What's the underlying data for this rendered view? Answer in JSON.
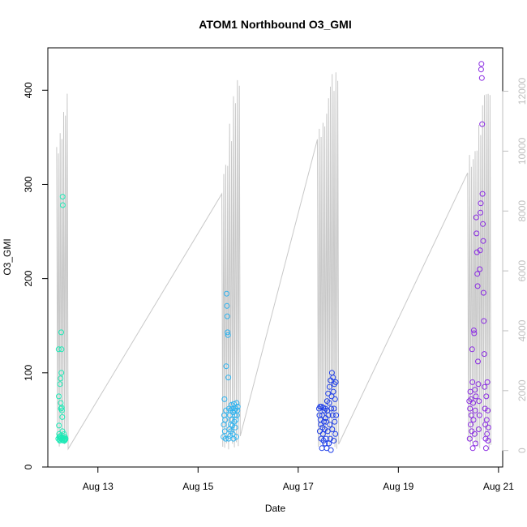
{
  "chart_data": {
    "type": "scatter",
    "title": "ATOM1 Northbound O3_GMI",
    "xlabel": "Date",
    "ylabel": "O3_GMI",
    "xlim": [
      "2016-08-12T00:00",
      "2016-08-21T02:00"
    ],
    "ylim": [
      0,
      445
    ],
    "y_ticks": [
      "0",
      "100",
      "200",
      "300",
      "400"
    ],
    "x_ticks": [
      {
        "date": "2016-08-13",
        "label": "Aug 13"
      },
      {
        "date": "2016-08-15",
        "label": "Aug 15"
      },
      {
        "date": "2016-08-17",
        "label": "Aug 17"
      },
      {
        "date": "2016-08-19",
        "label": "Aug 19"
      },
      {
        "date": "2016-08-21",
        "label": "Aug 21"
      }
    ],
    "right_axis": {
      "ticks": [
        "0",
        "2000",
        "4000",
        "6000",
        "8000",
        "10000",
        "12000"
      ],
      "ylim": [
        -550,
        13450
      ],
      "color": "#bfbfbf"
    },
    "grid": false,
    "legend": "none",
    "marker": "open-circle",
    "altitude_line_color": "#c8c8c8",
    "series": [
      {
        "color": "#1de9b6",
        "x": [
          "2016-08-12T05:00",
          "2016-08-12T05:10",
          "2016-08-12T05:15",
          "2016-08-12T05:20",
          "2016-08-12T05:25",
          "2016-08-12T05:30",
          "2016-08-12T05:35",
          "2016-08-12T05:45",
          "2016-08-12T05:50",
          "2016-08-12T05:55",
          "2016-08-12T06:00",
          "2016-08-12T06:05",
          "2016-08-12T06:10",
          "2016-08-12T06:15",
          "2016-08-12T06:20",
          "2016-08-12T06:25",
          "2016-08-12T06:30",
          "2016-08-12T06:35",
          "2016-08-12T06:40",
          "2016-08-12T06:45",
          "2016-08-12T06:50",
          "2016-08-12T06:55",
          "2016-08-12T07:00",
          "2016-08-12T07:05",
          "2016-08-12T07:10",
          "2016-08-12T07:20",
          "2016-08-12T07:25",
          "2016-08-12T07:35",
          "2016-08-12T07:45",
          "2016-08-12T07:55",
          "2016-08-12T08:00",
          "2016-08-12T08:10",
          "2016-08-12T08:20",
          "2016-08-12T08:30"
        ],
        "y": [
          30,
          125,
          75,
          44,
          35,
          32,
          29,
          28,
          88,
          31,
          33,
          94,
          68,
          62,
          30,
          143,
          100,
          125,
          63,
          60,
          29,
          53,
          38,
          287,
          278,
          31,
          29,
          28,
          35,
          30,
          28,
          32,
          29,
          30
        ]
      },
      {
        "color": "#2fb2ee",
        "x": [
          "2016-08-15T12:10",
          "2016-08-15T12:20",
          "2016-08-15T12:30",
          "2016-08-15T12:40",
          "2016-08-15T12:50",
          "2016-08-15T13:00",
          "2016-08-15T13:10",
          "2016-08-15T13:20",
          "2016-08-15T13:30",
          "2016-08-15T13:40",
          "2016-08-15T13:50",
          "2016-08-15T14:00",
          "2016-08-15T14:10",
          "2016-08-15T14:20",
          "2016-08-15T14:30",
          "2016-08-15T14:40",
          "2016-08-15T14:50",
          "2016-08-15T15:00",
          "2016-08-15T15:10",
          "2016-08-15T15:20",
          "2016-08-15T15:30",
          "2016-08-15T15:40",
          "2016-08-15T15:50",
          "2016-08-15T16:00",
          "2016-08-15T16:10",
          "2016-08-15T16:20",
          "2016-08-15T16:30",
          "2016-08-15T16:40",
          "2016-08-15T16:50",
          "2016-08-15T17:00",
          "2016-08-15T17:10",
          "2016-08-15T17:20",
          "2016-08-15T17:30",
          "2016-08-15T17:40",
          "2016-08-15T17:50",
          "2016-08-15T18:00",
          "2016-08-15T18:10",
          "2016-08-15T18:20",
          "2016-08-15T18:30",
          "2016-08-15T18:40",
          "2016-08-15T18:50",
          "2016-08-15T19:00"
        ],
        "y": [
          32,
          45,
          55,
          72,
          38,
          50,
          30,
          60,
          107,
          184,
          171,
          160,
          143,
          140,
          95,
          30,
          62,
          40,
          55,
          33,
          60,
          45,
          38,
          66,
          50,
          62,
          44,
          35,
          58,
          30,
          67,
          48,
          60,
          55,
          42,
          62,
          50,
          32,
          68,
          55,
          60,
          64
        ]
      },
      {
        "color": "#1f3fe8",
        "x": [
          "2016-08-17T10:00",
          "2016-08-17T10:10",
          "2016-08-17T10:20",
          "2016-08-17T10:30",
          "2016-08-17T10:40",
          "2016-08-17T10:50",
          "2016-08-17T11:00",
          "2016-08-17T11:10",
          "2016-08-17T11:20",
          "2016-08-17T11:30",
          "2016-08-17T11:40",
          "2016-08-17T11:50",
          "2016-08-17T12:00",
          "2016-08-17T12:10",
          "2016-08-17T12:20",
          "2016-08-17T12:30",
          "2016-08-17T12:40",
          "2016-08-17T12:50",
          "2016-08-17T13:00",
          "2016-08-17T13:10",
          "2016-08-17T13:20",
          "2016-08-17T13:30",
          "2016-08-17T13:40",
          "2016-08-17T13:50",
          "2016-08-17T14:00",
          "2016-08-17T14:10",
          "2016-08-17T14:20",
          "2016-08-17T14:30",
          "2016-08-17T14:40",
          "2016-08-17T14:50",
          "2016-08-17T15:00",
          "2016-08-17T15:10",
          "2016-08-17T15:20",
          "2016-08-17T15:30",
          "2016-08-17T15:40",
          "2016-08-17T15:50",
          "2016-08-17T16:00",
          "2016-08-17T16:10",
          "2016-08-17T16:20",
          "2016-08-17T16:30",
          "2016-08-17T16:40",
          "2016-08-17T16:50",
          "2016-08-17T17:00",
          "2016-08-17T17:10",
          "2016-08-17T17:20",
          "2016-08-17T17:30",
          "2016-08-17T17:40",
          "2016-08-17T17:50",
          "2016-08-17T18:00",
          "2016-08-17T18:10"
        ],
        "y": [
          62,
          55,
          38,
          64,
          50,
          45,
          30,
          64,
          20,
          55,
          42,
          35,
          63,
          28,
          48,
          60,
          40,
          25,
          62,
          52,
          30,
          48,
          20,
          70,
          60,
          38,
          78,
          55,
          25,
          68,
          85,
          45,
          30,
          92,
          18,
          62,
          75,
          100,
          40,
          55,
          95,
          80,
          28,
          62,
          88,
          48,
          72,
          35,
          90,
          55
        ]
      },
      {
        "color": "#8a2be2",
        "x": [
          "2016-08-20T10:00",
          "2016-08-20T10:10",
          "2016-08-20T10:20",
          "2016-08-20T10:30",
          "2016-08-20T10:40",
          "2016-08-20T10:50",
          "2016-08-20T11:00",
          "2016-08-20T11:10",
          "2016-08-20T11:20",
          "2016-08-20T11:30",
          "2016-08-20T11:40",
          "2016-08-20T11:50",
          "2016-08-20T12:00",
          "2016-08-20T12:10",
          "2016-08-20T12:20",
          "2016-08-20T12:30",
          "2016-08-20T12:40",
          "2016-08-20T12:50",
          "2016-08-20T13:00",
          "2016-08-20T13:10",
          "2016-08-20T13:20",
          "2016-08-20T13:30",
          "2016-08-20T13:40",
          "2016-08-20T13:50",
          "2016-08-20T14:00",
          "2016-08-20T14:10",
          "2016-08-20T14:20",
          "2016-08-20T14:30",
          "2016-08-20T14:40",
          "2016-08-20T14:50",
          "2016-08-20T15:00",
          "2016-08-20T15:10",
          "2016-08-20T15:20",
          "2016-08-20T15:30",
          "2016-08-20T15:40",
          "2016-08-20T15:50",
          "2016-08-20T16:00",
          "2016-08-20T16:10",
          "2016-08-20T16:20",
          "2016-08-20T16:30",
          "2016-08-20T16:40",
          "2016-08-20T16:50",
          "2016-08-20T17:00",
          "2016-08-20T17:10",
          "2016-08-20T17:20",
          "2016-08-20T17:30",
          "2016-08-20T17:40",
          "2016-08-20T17:50",
          "2016-08-20T18:00",
          "2016-08-20T18:10",
          "2016-08-20T18:20",
          "2016-08-20T18:30",
          "2016-08-20T18:40",
          "2016-08-20T18:50",
          "2016-08-20T19:00",
          "2016-08-20T19:10"
        ],
        "y": [
          70,
          30,
          62,
          80,
          45,
          72,
          55,
          38,
          125,
          90,
          20,
          68,
          50,
          145,
          142,
          35,
          82,
          60,
          25,
          75,
          265,
          248,
          228,
          205,
          192,
          112,
          88,
          40,
          70,
          55,
          210,
          230,
          270,
          280,
          422,
          428,
          413,
          364,
          290,
          258,
          240,
          185,
          155,
          120,
          85,
          62,
          45,
          30,
          20,
          75,
          50,
          35,
          90,
          60,
          28,
          42
        ]
      }
    ]
  }
}
